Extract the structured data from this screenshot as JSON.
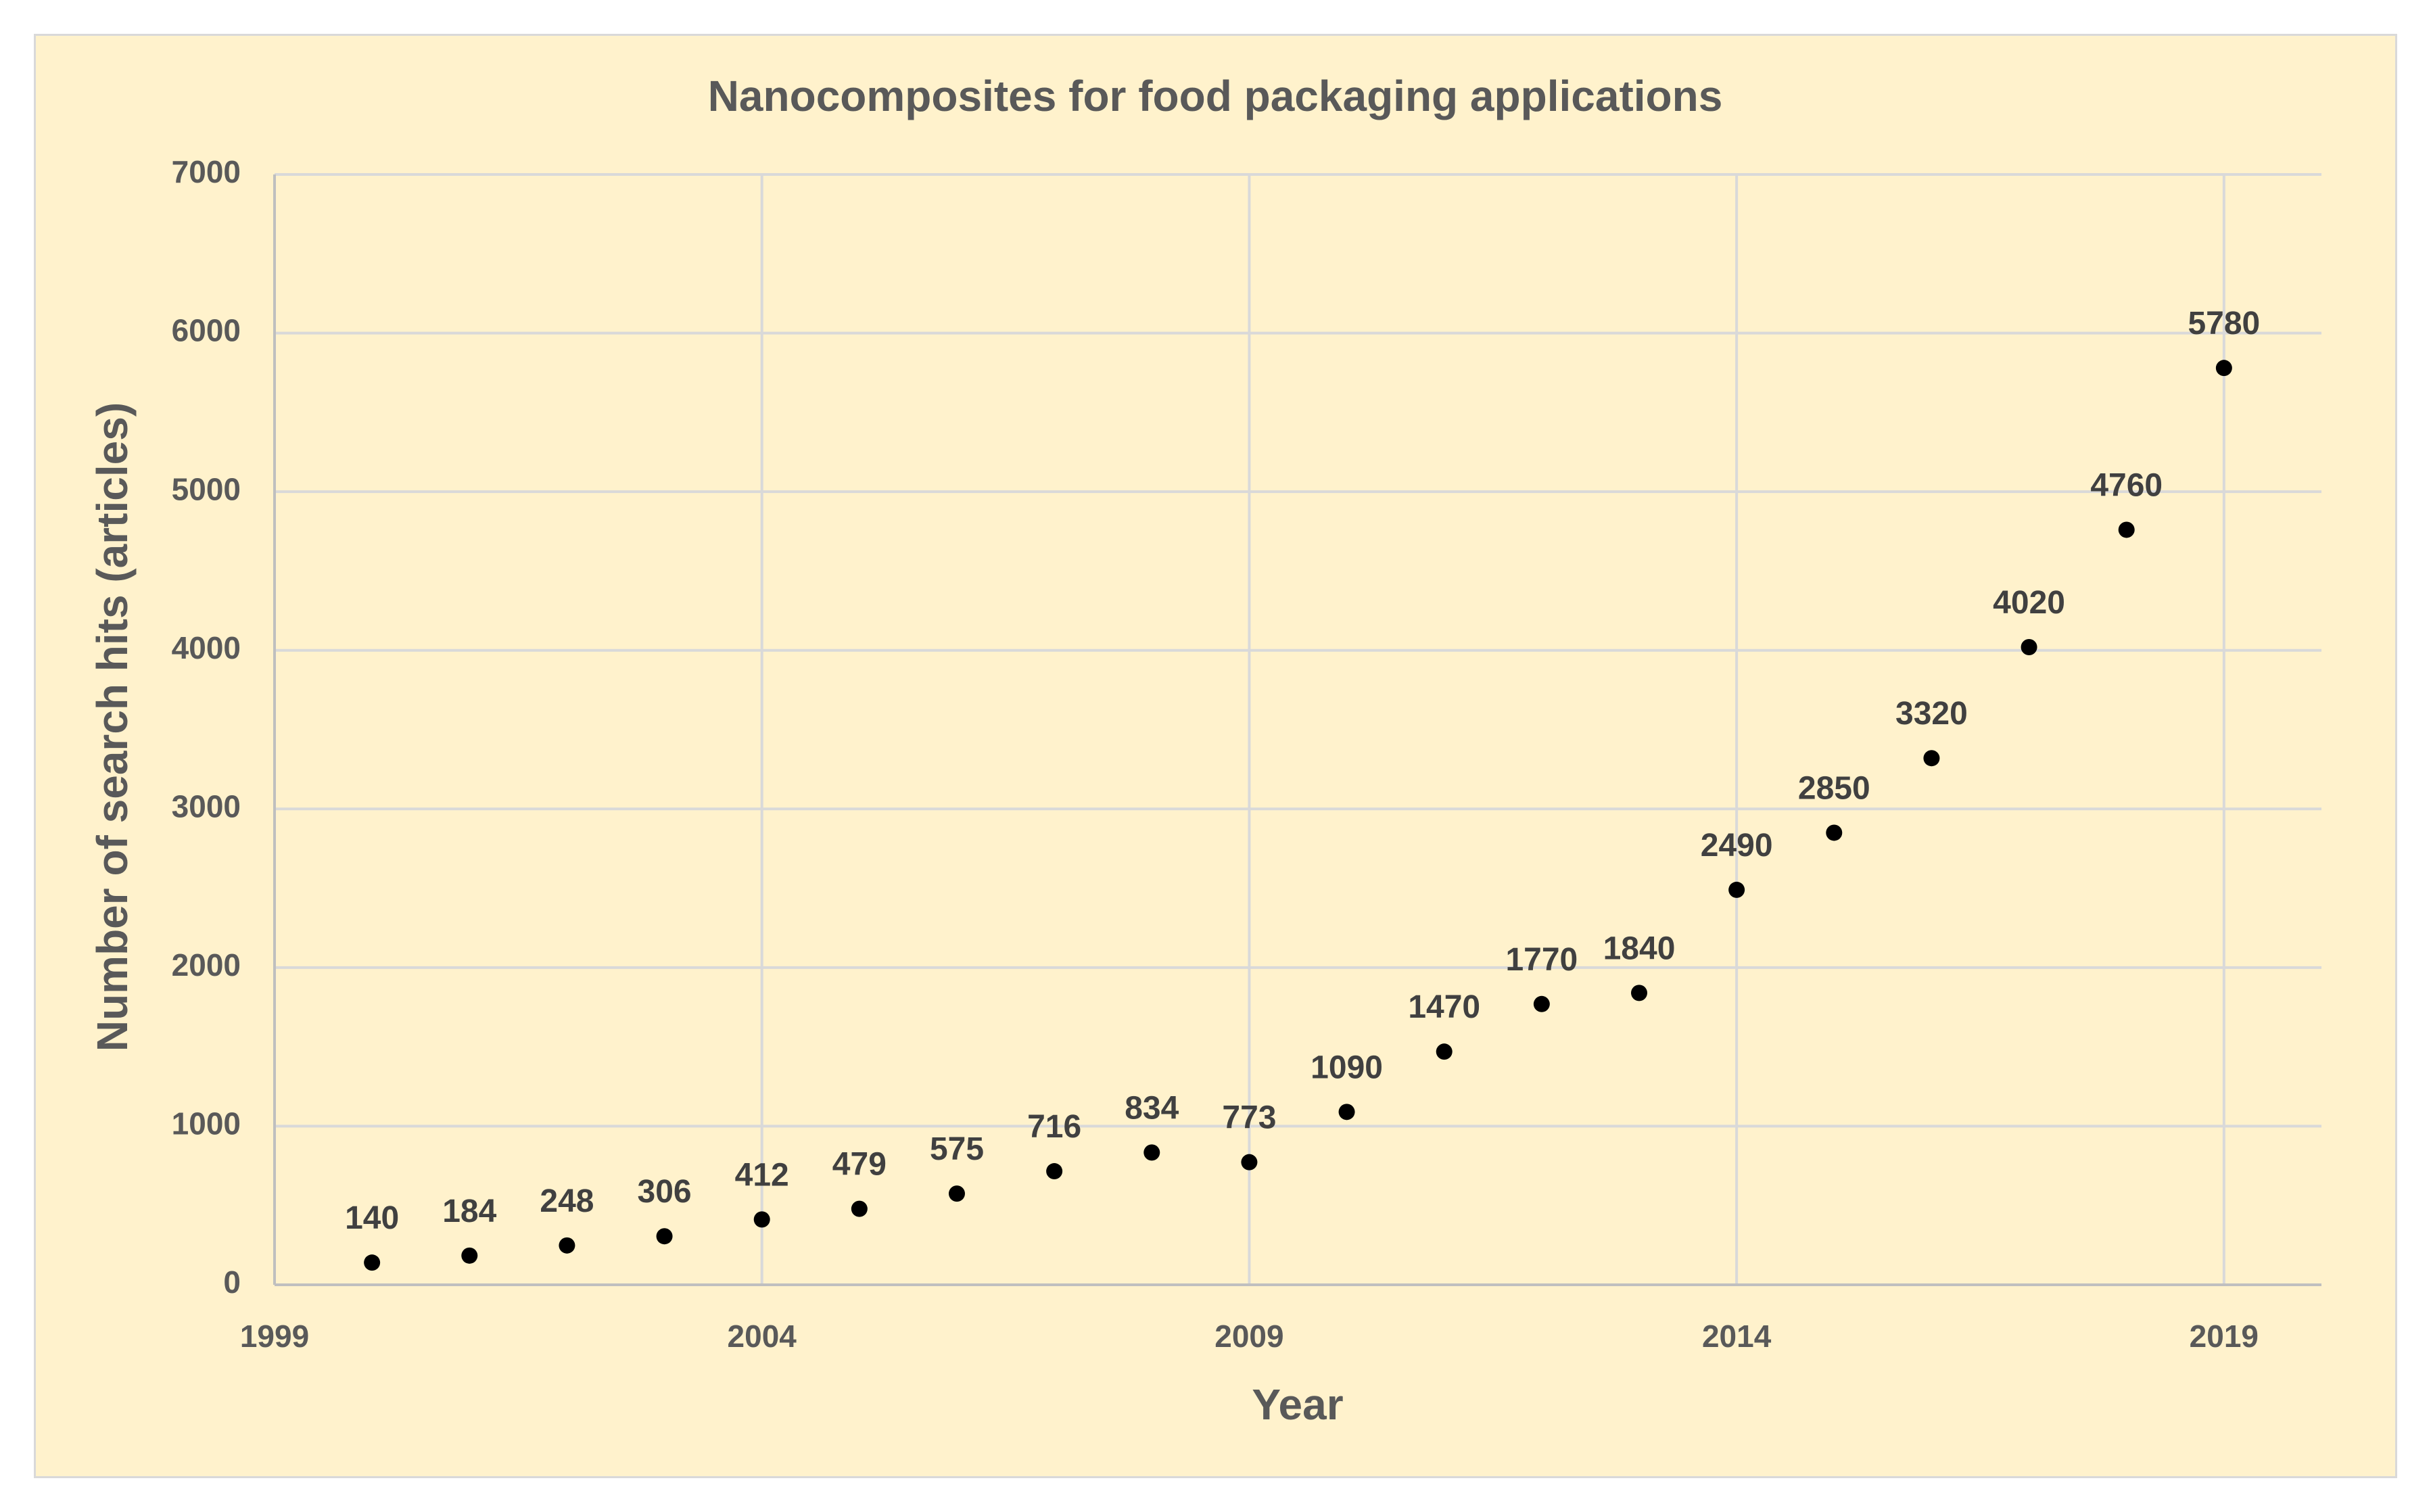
{
  "chart_data": {
    "type": "scatter",
    "title": "Nanocomposites for food packaging applications",
    "xlabel": "Year",
    "ylabel": "Number of search hits (articles)",
    "xlim": [
      1999,
      2020
    ],
    "ylim": [
      0,
      7000
    ],
    "x_ticks": [
      1999,
      2004,
      2009,
      2014,
      2019
    ],
    "y_ticks": [
      0,
      1000,
      2000,
      3000,
      4000,
      5000,
      6000,
      7000
    ],
    "grid": true,
    "legend": "none",
    "series": [
      {
        "name": "Search hits",
        "x": [
          2000,
          2001,
          2002,
          2003,
          2004,
          2005,
          2006,
          2007,
          2008,
          2009,
          2010,
          2011,
          2012,
          2013,
          2014,
          2015,
          2016,
          2017,
          2018,
          2019
        ],
        "values": [
          140,
          184,
          248,
          306,
          412,
          479,
          575,
          716,
          834,
          773,
          1090,
          1470,
          1770,
          1840,
          2490,
          2850,
          3320,
          4020,
          4760,
          5780
        ],
        "labels": [
          "140",
          "184",
          "248",
          "306",
          "412",
          "479",
          "575",
          "716",
          "834",
          "773",
          "1090",
          "1470",
          "1770",
          "1840",
          "2490",
          "2850",
          "3320",
          "4020",
          "4760",
          "5780"
        ]
      }
    ],
    "colors": {
      "background": "#fff2cc",
      "marker": "#000000",
      "grid": "#d9d9d9",
      "text": "#595959"
    }
  }
}
